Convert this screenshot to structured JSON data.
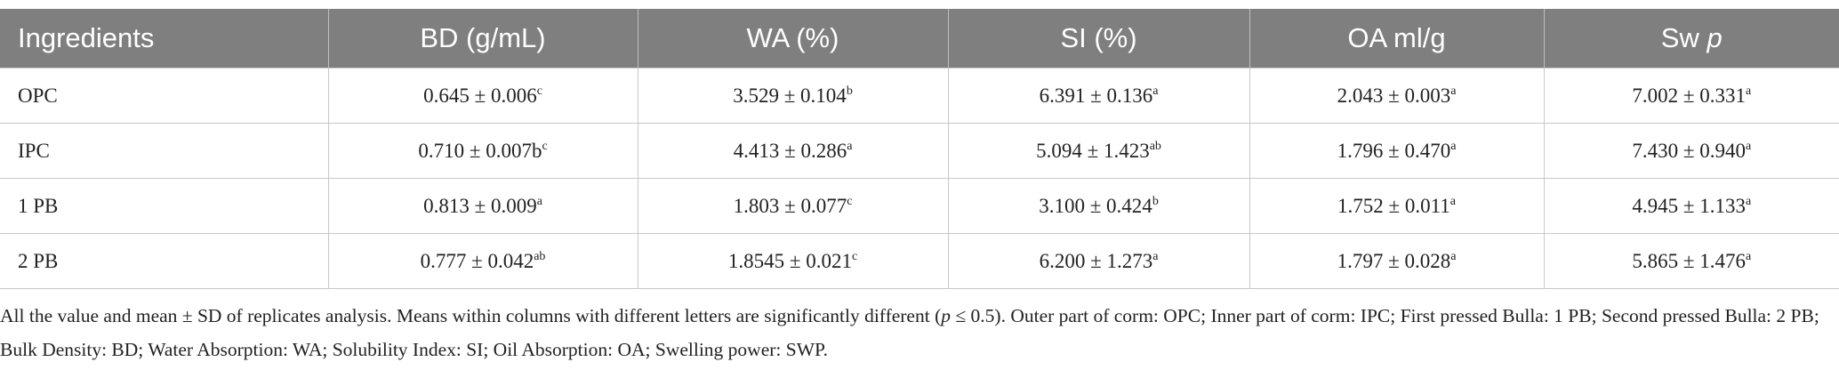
{
  "table": {
    "header": [
      "Ingredients",
      "BD (g/mL)",
      "WA (%)",
      "SI (%)",
      "OA ml/g",
      {
        "text": "Sw",
        "italic": "p"
      }
    ],
    "rows": [
      [
        "OPC",
        {
          "text": "0.645 ± 0.006",
          "sup": "c"
        },
        {
          "text": "3.529 ± 0.104",
          "sup": "b"
        },
        {
          "text": "6.391 ± 0.136",
          "sup": "a"
        },
        {
          "text": "2.043 ± 0.003",
          "sup": "a"
        },
        {
          "text": "7.002 ± 0.331",
          "sup": "a"
        }
      ],
      [
        "IPC",
        {
          "text": "0.710 ± 0.007b",
          "sup": "c"
        },
        {
          "text": "4.413 ± 0.286",
          "sup": "a"
        },
        {
          "text": "5.094 ± 1.423",
          "sup": "ab"
        },
        {
          "text": "1.796 ± 0.470",
          "sup": "a"
        },
        {
          "text": "7.430 ± 0.940",
          "sup": "a"
        }
      ],
      [
        "1 PB",
        {
          "text": "0.813 ± 0.009",
          "sup": "a"
        },
        {
          "text": "1.803 ± 0.077",
          "sup": "c"
        },
        {
          "text": "3.100 ± 0.424",
          "sup": "b"
        },
        {
          "text": "1.752 ± 0.011",
          "sup": "a"
        },
        {
          "text": "4.945 ± 1.133",
          "sup": "a"
        }
      ],
      [
        "2 PB",
        {
          "text": "0.777 ± 0.042",
          "sup": "ab"
        },
        {
          "text": "1.8545 ± 0.021",
          "sup": "c"
        },
        {
          "text": "6.200 ± 1.273",
          "sup": "a"
        },
        {
          "text": "1.797 ± 0.028",
          "sup": "a"
        },
        {
          "text": "5.865 ± 1.476",
          "sup": "a"
        }
      ]
    ]
  },
  "footnote": {
    "before": "All the value and mean ± SD of replicates analysis. Means within columns with different letters are significantly different (",
    "italic": "p",
    "after": " ≤ 0.5). Outer part of corm: OPC; Inner part of corm: IPC; First pressed Bulla: 1 PB; Second pressed Bulla: 2 PB; Bulk Density: BD; Water Absorption: WA; Solubility Index: SI; Oil Absorption: OA; Swelling power: SWP."
  }
}
